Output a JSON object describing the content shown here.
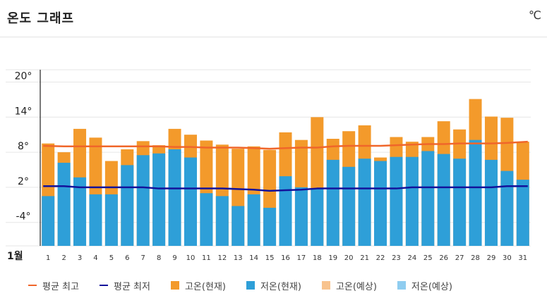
{
  "header": {
    "title": "온도 그래프",
    "unit": "℃"
  },
  "chart_data": {
    "type": "bar",
    "title": "온도 그래프",
    "xlabel": "1월",
    "ylabel": "",
    "ylim": [
      -9,
      25
    ],
    "yticks": [
      "20°",
      "14°",
      "8°",
      "2°",
      "-4°"
    ],
    "ytick_values": [
      20,
      14,
      8,
      2,
      -4
    ],
    "categories": [
      "1",
      "2",
      "3",
      "4",
      "5",
      "6",
      "7",
      "8",
      "9",
      "10",
      "11",
      "12",
      "13",
      "14",
      "15",
      "16",
      "17",
      "18",
      "19",
      "20",
      "21",
      "22",
      "23",
      "24",
      "25",
      "26",
      "27",
      "28",
      "29",
      "30",
      "31"
    ],
    "series": [
      {
        "name": "고온(현재)",
        "kind": "bar",
        "color": "#f39a2b",
        "values": [
          9.5,
          8,
          12,
          10.5,
          6.5,
          8.5,
          9.9,
          9.2,
          12,
          11,
          10,
          9.3,
          8.6,
          9,
          8.4,
          11.4,
          10.1,
          14,
          10.3,
          11.6,
          12.6,
          7.1,
          10.6,
          9.8,
          10.6,
          13.3,
          11.9,
          17.1,
          14.1,
          13.9,
          9.8
        ]
      },
      {
        "name": "저온(현재)",
        "kind": "bar",
        "color": "#2e9fd8",
        "values": [
          0.5,
          6.2,
          3.7,
          0.8,
          0.8,
          5.8,
          7.5,
          7.8,
          8.5,
          7.1,
          1,
          0.5,
          -1.2,
          0.8,
          -1.5,
          3.9,
          2,
          1.7,
          6.7,
          5.5,
          6.9,
          6.5,
          7.2,
          7.2,
          8.2,
          7.7,
          6.9,
          10.1,
          6.7,
          4.8,
          3.3
        ]
      },
      {
        "name": "평균 최고",
        "kind": "line",
        "color": "#f0662a",
        "values": [
          9.1,
          9,
          9,
          9,
          9,
          9,
          9,
          9,
          8.9,
          8.9,
          8.8,
          8.8,
          8.8,
          8.7,
          8.6,
          8.7,
          8.8,
          8.8,
          9,
          9.1,
          9.1,
          9.1,
          9.2,
          9.3,
          9.4,
          9.4,
          9.5,
          9.5,
          9.5,
          9.6,
          9.8
        ]
      },
      {
        "name": "평균 최저",
        "kind": "line",
        "color": "#13129b",
        "values": [
          2.2,
          2.2,
          2,
          2,
          2,
          2,
          2,
          1.8,
          1.8,
          1.8,
          1.8,
          1.8,
          1.7,
          1.6,
          1.4,
          1.5,
          1.6,
          1.8,
          1.8,
          1.8,
          1.8,
          1.8,
          1.8,
          2,
          2,
          2,
          2,
          2,
          2,
          2.2,
          2.2
        ]
      }
    ],
    "grid": true,
    "legend_position": "bottom",
    "legend": [
      {
        "label": "평균 최고",
        "color": "#f0662a",
        "shape": "line"
      },
      {
        "label": "평균 최저",
        "color": "#13129b",
        "shape": "line"
      },
      {
        "label": "고온(현재)",
        "color": "#f39a2b",
        "shape": "box"
      },
      {
        "label": "저온(현재)",
        "color": "#2e9fd8",
        "shape": "box"
      },
      {
        "label": "고온(예상)",
        "color": "#f8c38e",
        "shape": "box"
      },
      {
        "label": "저온(예상)",
        "color": "#8fcdf0",
        "shape": "box"
      }
    ]
  }
}
